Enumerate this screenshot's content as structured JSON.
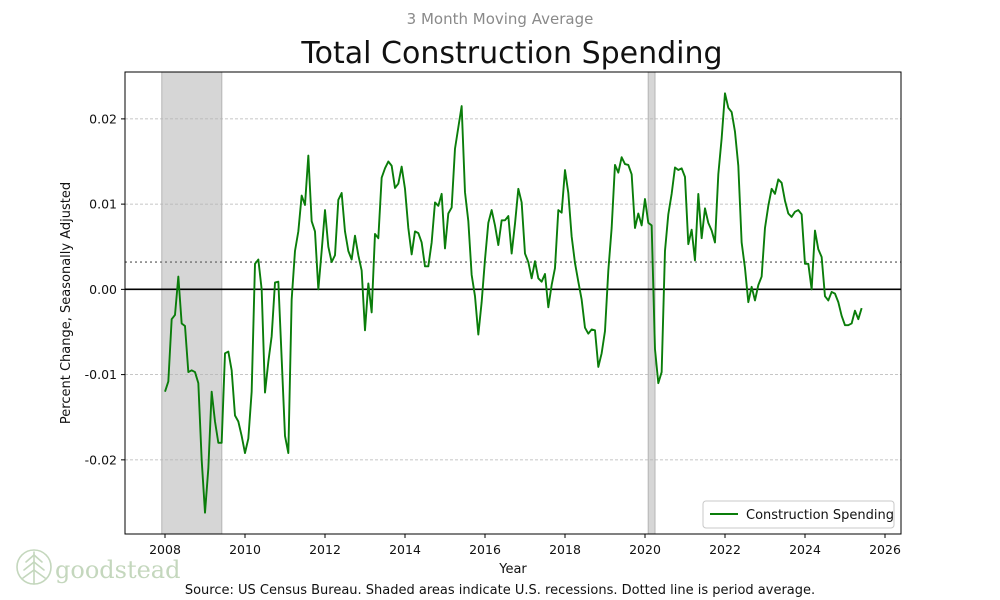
{
  "chart_data": {
    "type": "line",
    "subtitle": "3 Month Moving Average",
    "title": "Total Construction Spending",
    "xlabel": "Year",
    "ylabel": "Percent Change, Seasonally Adjusted",
    "xlim": [
      2007.0,
      2026.4
    ],
    "ylim": [
      -0.0287,
      0.0255
    ],
    "x_ticks": [
      2008,
      2010,
      2012,
      2014,
      2016,
      2018,
      2020,
      2022,
      2024,
      2026
    ],
    "y_ticks": [
      -0.02,
      -0.01,
      0.0,
      0.01,
      0.02
    ],
    "y_tick_labels": [
      "-0.02",
      "-0.01",
      "0.00",
      "0.01",
      "0.02"
    ],
    "grid": "horizontal dashed",
    "zero_line": 0.0,
    "period_average": 0.0032,
    "recessions": [
      [
        2007.92,
        2009.42
      ],
      [
        2020.08,
        2020.25
      ]
    ],
    "legend": {
      "label": "Construction Spending",
      "placement": "lower-right"
    },
    "color": "#0a7d0a",
    "series": [
      {
        "name": "Construction Spending",
        "x_start": 2008.0,
        "x_step": 0.08333,
        "values": [
          -0.012,
          -0.0108,
          -0.0035,
          -0.003,
          0.0015,
          -0.004,
          -0.0043,
          -0.0097,
          -0.0095,
          -0.0097,
          -0.011,
          -0.02,
          -0.0262,
          -0.021,
          -0.012,
          -0.0155,
          -0.018,
          -0.018,
          -0.0075,
          -0.0073,
          -0.0095,
          -0.0148,
          -0.0155,
          -0.0172,
          -0.0192,
          -0.0175,
          -0.012,
          0.003,
          0.0035,
          0.0,
          -0.0121,
          -0.0085,
          -0.0055,
          0.0008,
          0.0009,
          -0.0081,
          -0.0172,
          -0.0192,
          -0.0012,
          0.0045,
          0.0068,
          0.011,
          0.0099,
          0.0157,
          0.008,
          0.0068,
          0.0,
          0.0045,
          0.0093,
          0.005,
          0.0032,
          0.004,
          0.0105,
          0.0113,
          0.0068,
          0.0045,
          0.0035,
          0.0063,
          0.004,
          0.0022,
          -0.0048,
          0.0007,
          -0.0027,
          0.0065,
          0.006,
          0.0131,
          0.0142,
          0.015,
          0.0145,
          0.0119,
          0.0124,
          0.0144,
          0.0118,
          0.0072,
          0.0041,
          0.0068,
          0.0066,
          0.0055,
          0.0027,
          0.0027,
          0.0055,
          0.0102,
          0.0098,
          0.0112,
          0.0048,
          0.0089,
          0.0096,
          0.0165,
          0.019,
          0.0215,
          0.0114,
          0.008,
          0.0017,
          -0.0008,
          -0.0053,
          -0.0015,
          0.0035,
          0.0078,
          0.0093,
          0.0075,
          0.0052,
          0.0081,
          0.0081,
          0.0086,
          0.0042,
          0.0077,
          0.0118,
          0.0102,
          0.0042,
          0.0032,
          0.0013,
          0.0033,
          0.0013,
          0.0009,
          0.0018,
          -0.0021,
          0.0005,
          0.0025,
          0.0093,
          0.009,
          0.014,
          0.0113,
          0.0062,
          0.0031,
          0.0009,
          -0.0012,
          -0.0045,
          -0.0052,
          -0.0047,
          -0.0048,
          -0.0091,
          -0.0075,
          -0.0049,
          0.0022,
          0.0072,
          0.0146,
          0.0137,
          0.0155,
          0.0147,
          0.0146,
          0.0135,
          0.0072,
          0.0089,
          0.0075,
          0.0106,
          0.0078,
          0.0075,
          -0.007,
          -0.011,
          -0.0097,
          0.0045,
          0.0088,
          0.0112,
          0.0143,
          0.014,
          0.0142,
          0.0132,
          0.0053,
          0.007,
          0.0034,
          0.0112,
          0.006,
          0.0095,
          0.0078,
          0.0069,
          0.0055,
          0.0135,
          0.0177,
          0.023,
          0.0213,
          0.0208,
          0.0185,
          0.0145,
          0.0055,
          0.0025,
          -0.0015,
          0.0003,
          -0.0013,
          0.0005,
          0.0015,
          0.0072,
          0.0098,
          0.0118,
          0.0112,
          0.0129,
          0.0125,
          0.0104,
          0.0089,
          0.0085,
          0.0091,
          0.0093,
          0.0088,
          0.003,
          0.003,
          0.0,
          0.0069,
          0.0047,
          0.0038,
          -0.0008,
          -0.0013,
          -0.0003,
          -0.0005,
          -0.0015,
          -0.0031,
          -0.0042,
          -0.0042,
          -0.004,
          -0.0025,
          -0.0035,
          -0.0022
        ]
      }
    ]
  },
  "source_note": "Source: US Census Bureau. Shaded areas indicate U.S. recessions. Dotted line is period average.",
  "logo": {
    "text": "goodstead",
    "icon": "pine-tree-icon",
    "color": "#c4d7bd"
  }
}
